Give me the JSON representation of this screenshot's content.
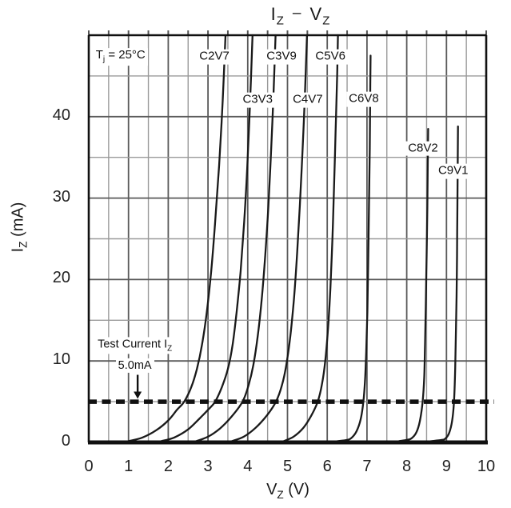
{
  "header": {
    "title_y_symbol": "I",
    "title_y_sub": "Z",
    "title_dash": "–",
    "title_x_symbol": "V",
    "title_x_sub": "Z"
  },
  "condition": {
    "prefix": "T",
    "sub": "j",
    "suffix": " = 25°C",
    "v": 0.8,
    "i": 47.3
  },
  "test_current": {
    "line1_prefix": "Test Current I",
    "line1_sub": "Z",
    "line2": "5.0mA",
    "v": 1.16,
    "i_line1": 11.9,
    "i_line2": 9.4,
    "arrow_v": 1.23,
    "arrow_from_i": 8.3,
    "arrow_to_i": 5.35,
    "at_i": 5
  },
  "colors": {
    "curve": "#1a1a1a",
    "grid_minor": "#9a9a9a",
    "grid_major": "#5a5a5a",
    "border": "#111111",
    "dashed_line": "#111111",
    "text": "#1d1d1d"
  },
  "chart_data": {
    "type": "line",
    "title": "IZ - VZ",
    "xlabel": "VZ (V)",
    "ylabel": "IZ (mA)",
    "xlim": [
      0,
      10
    ],
    "ylim": [
      0,
      50
    ],
    "x_ticks": [
      0,
      1,
      2,
      3,
      4,
      5,
      6,
      7,
      8,
      9,
      10
    ],
    "y_ticks": [
      0,
      10,
      20,
      30,
      40
    ],
    "x_minor_step": 0.5,
    "y_minor_step": 5,
    "grid": true,
    "test_current_line_mA": 5,
    "series": [
      {
        "name": "C2V7",
        "label_at": {
          "v": 3.16,
          "i": 47.3
        },
        "points": [
          [
            1.0,
            0.15
          ],
          [
            1.35,
            0.6
          ],
          [
            1.7,
            1.5
          ],
          [
            2.0,
            2.7
          ],
          [
            2.22,
            4.0
          ],
          [
            2.4,
            5
          ],
          [
            2.58,
            6.8
          ],
          [
            2.72,
            9
          ],
          [
            2.85,
            12
          ],
          [
            2.97,
            16
          ],
          [
            3.08,
            21
          ],
          [
            3.18,
            27
          ],
          [
            3.28,
            34
          ],
          [
            3.37,
            42
          ],
          [
            3.44,
            50
          ]
        ]
      },
      {
        "name": "C3V3",
        "label_at": {
          "v": 4.25,
          "i": 42.0
        },
        "points": [
          [
            1.82,
            0.15
          ],
          [
            2.15,
            0.6
          ],
          [
            2.5,
            1.6
          ],
          [
            2.8,
            3.0
          ],
          [
            3.0,
            4.0
          ],
          [
            3.18,
            5
          ],
          [
            3.35,
            6.8
          ],
          [
            3.5,
            9
          ],
          [
            3.62,
            12
          ],
          [
            3.72,
            16
          ],
          [
            3.82,
            21
          ],
          [
            3.91,
            27
          ],
          [
            3.99,
            34
          ],
          [
            4.06,
            42
          ],
          [
            4.12,
            50
          ]
        ]
      },
      {
        "name": "C3V9",
        "label_at": {
          "v": 4.85,
          "i": 47.3
        },
        "points": [
          [
            2.7,
            0.15
          ],
          [
            3.0,
            0.7
          ],
          [
            3.3,
            1.7
          ],
          [
            3.6,
            3.2
          ],
          [
            3.87,
            5
          ],
          [
            4.02,
            7
          ],
          [
            4.14,
            9.5
          ],
          [
            4.25,
            13
          ],
          [
            4.35,
            17.5
          ],
          [
            4.44,
            23
          ],
          [
            4.52,
            29
          ],
          [
            4.59,
            36
          ],
          [
            4.65,
            43
          ],
          [
            4.7,
            50
          ]
        ]
      },
      {
        "name": "C4V7",
        "label_at": {
          "v": 5.51,
          "i": 42.0
        },
        "points": [
          [
            3.6,
            0.15
          ],
          [
            3.9,
            0.7
          ],
          [
            4.2,
            1.8
          ],
          [
            4.48,
            3.3
          ],
          [
            4.71,
            5
          ],
          [
            4.86,
            7
          ],
          [
            4.97,
            9.5
          ],
          [
            5.07,
            13
          ],
          [
            5.16,
            17.5
          ],
          [
            5.24,
            23
          ],
          [
            5.31,
            29
          ],
          [
            5.38,
            36
          ],
          [
            5.44,
            43
          ],
          [
            5.49,
            50
          ]
        ]
      },
      {
        "name": "C5V6",
        "label_at": {
          "v": 6.08,
          "i": 47.3
        },
        "points": [
          [
            4.9,
            0.15
          ],
          [
            5.15,
            0.7
          ],
          [
            5.4,
            1.8
          ],
          [
            5.6,
            3.3
          ],
          [
            5.76,
            5
          ],
          [
            5.87,
            7.2
          ],
          [
            5.95,
            10
          ],
          [
            6.02,
            14
          ],
          [
            6.08,
            19
          ],
          [
            6.13,
            25
          ],
          [
            6.17,
            31
          ],
          [
            6.21,
            38
          ],
          [
            6.25,
            45
          ],
          [
            6.27,
            50
          ]
        ]
      },
      {
        "name": "C6V8",
        "label_at": {
          "v": 6.92,
          "i": 42.1
        },
        "points": [
          [
            6.25,
            0.15
          ],
          [
            6.5,
            0.3
          ],
          [
            6.62,
            0.6
          ],
          [
            6.74,
            1.4
          ],
          [
            6.84,
            2.8
          ],
          [
            6.91,
            5
          ],
          [
            6.95,
            7.5
          ],
          [
            6.98,
            11
          ],
          [
            7.01,
            16
          ],
          [
            7.03,
            22
          ],
          [
            7.05,
            29
          ],
          [
            7.07,
            36
          ],
          [
            7.08,
            42
          ],
          [
            7.09,
            47.5
          ]
        ]
      },
      {
        "name": "C8V2",
        "label_at": {
          "v": 8.41,
          "i": 36.1
        },
        "points": [
          [
            7.8,
            0.15
          ],
          [
            8.0,
            0.3
          ],
          [
            8.12,
            0.5
          ],
          [
            8.24,
            1.2
          ],
          [
            8.33,
            2.6
          ],
          [
            8.4,
            5
          ],
          [
            8.44,
            8
          ],
          [
            8.46,
            12
          ],
          [
            8.48,
            17
          ],
          [
            8.5,
            23
          ],
          [
            8.52,
            29
          ],
          [
            8.53,
            34
          ],
          [
            8.54,
            38.5
          ]
        ]
      },
      {
        "name": "C9V1",
        "label_at": {
          "v": 9.17,
          "i": 33.3
        },
        "points": [
          [
            8.6,
            0.15
          ],
          [
            8.88,
            0.3
          ],
          [
            8.98,
            0.5
          ],
          [
            9.07,
            1.2
          ],
          [
            9.14,
            2.6
          ],
          [
            9.19,
            5
          ],
          [
            9.22,
            9
          ],
          [
            9.24,
            14
          ],
          [
            9.26,
            20
          ],
          [
            9.27,
            26
          ],
          [
            9.28,
            32
          ],
          [
            9.29,
            38.8
          ]
        ]
      }
    ],
    "annotations": [
      {
        "text": "Tj = 25°C"
      },
      {
        "text": "Test Current IZ 5.0mA",
        "points_to_mA": 5
      }
    ]
  }
}
